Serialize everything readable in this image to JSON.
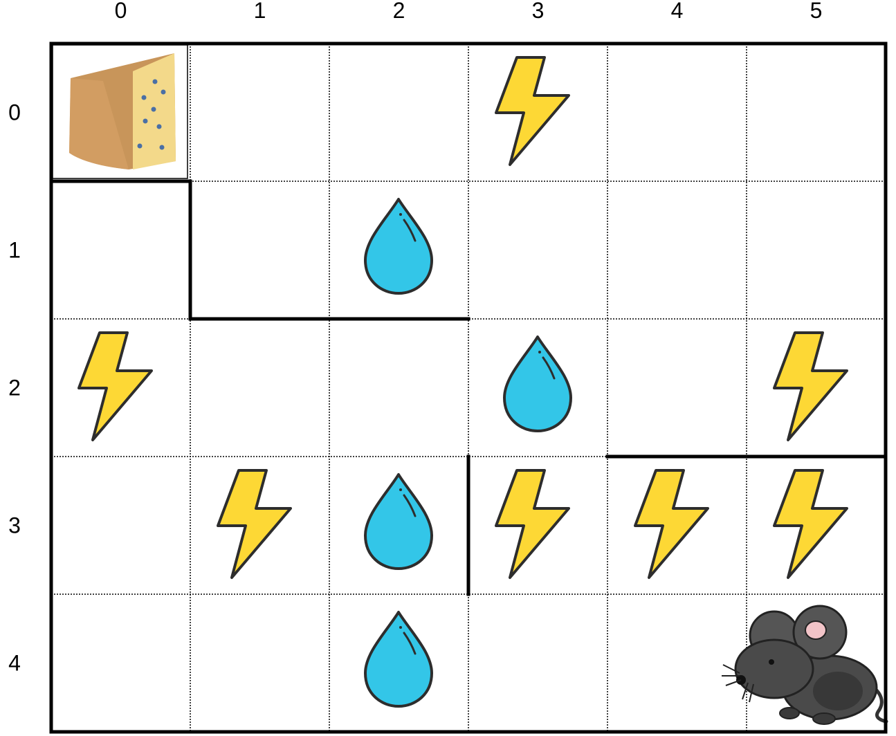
{
  "grid": {
    "rows": 5,
    "cols": 6,
    "col_labels": [
      "0",
      "1",
      "2",
      "3",
      "4",
      "5"
    ],
    "row_labels": [
      "0",
      "1",
      "2",
      "3",
      "4"
    ]
  },
  "pieces": [
    {
      "type": "cheese",
      "row": 0,
      "col": 0
    },
    {
      "type": "lightning",
      "row": 0,
      "col": 3
    },
    {
      "type": "water",
      "row": 1,
      "col": 2
    },
    {
      "type": "lightning",
      "row": 2,
      "col": 0
    },
    {
      "type": "water",
      "row": 2,
      "col": 3
    },
    {
      "type": "lightning",
      "row": 2,
      "col": 5
    },
    {
      "type": "lightning",
      "row": 3,
      "col": 1
    },
    {
      "type": "water",
      "row": 3,
      "col": 2
    },
    {
      "type": "lightning",
      "row": 3,
      "col": 3
    },
    {
      "type": "lightning",
      "row": 3,
      "col": 4
    },
    {
      "type": "lightning",
      "row": 3,
      "col": 5
    },
    {
      "type": "water",
      "row": 4,
      "col": 2
    },
    {
      "type": "mouse",
      "row": 4,
      "col": 5
    }
  ],
  "walls": [
    {
      "kind": "h",
      "row": 1,
      "from_col": 0,
      "to_col": 1
    },
    {
      "kind": "h",
      "row": 2,
      "from_col": 1,
      "to_col": 3
    },
    {
      "kind": "h",
      "row": 3,
      "from_col": 4,
      "to_col": 6
    },
    {
      "kind": "v",
      "col": 1,
      "from_row": 1,
      "to_row": 2
    },
    {
      "kind": "v",
      "col": 3,
      "from_row": 3,
      "to_row": 4
    }
  ],
  "colors": {
    "lightning_fill": "#FDD835",
    "water_fill": "#33C6E8",
    "outline": "#2d2d2d",
    "mouse_body": "#4a4a4a",
    "mouse_ear_inner": "#f2c4c8",
    "cheese_rind": "#c8955a",
    "cheese_face": "#f3d98a",
    "cheese_mold": "#4a6fa5"
  },
  "icons": {
    "cheese": "cheese-icon",
    "lightning": "lightning-icon",
    "water": "water-drop-icon",
    "mouse": "mouse-icon"
  }
}
